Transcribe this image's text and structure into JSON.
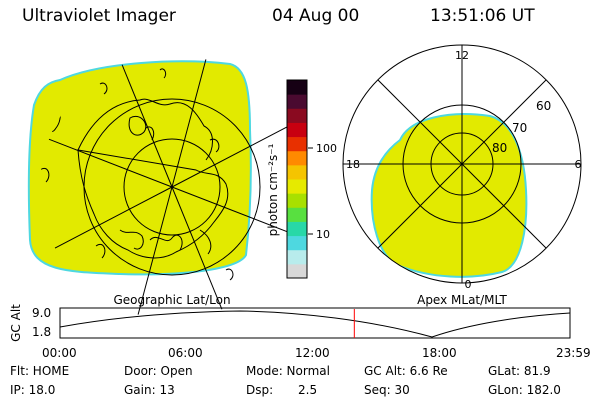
{
  "header": {
    "title": "Ultraviolet Imager",
    "date": "04 Aug 00",
    "time": "13:51:06 UT"
  },
  "geo_panel": {
    "label": "Geographic Lat/Lon"
  },
  "mag_panel": {
    "label": "Apex MLat/MLT",
    "mlt_labels": {
      "top": "12",
      "left": "18",
      "right": "6",
      "bottom": "0"
    },
    "lat_labels": [
      "60",
      "70",
      "80"
    ]
  },
  "colorbar": {
    "unit_label": "photon cm⁻²s⁻¹",
    "ticks": [
      "100",
      "10"
    ],
    "colors": {
      "scale": [
        "#d8d8d8",
        "#b8ecec",
        "#4ed8e0",
        "#28d8a8",
        "#58e040",
        "#a8e000",
        "#e6ea00",
        "#f5c400",
        "#ff8a00",
        "#e83000",
        "#c80010",
        "#8a0a20",
        "#4a0a30",
        "#160014"
      ]
    }
  },
  "altitude_plot": {
    "ylabel": "GC Alt",
    "yticks": [
      "9.0",
      "1.8"
    ],
    "xticks": [
      "00:00",
      "06:00",
      "12:00",
      "18:00",
      "23:59"
    ],
    "marker_time_hours": 13.85,
    "colors": {
      "marker": "#ff0000"
    }
  },
  "info": {
    "row1": {
      "flt": "Flt: HOME",
      "door": "Door: Open",
      "mode": "Mode: Normal",
      "gc_alt": "GC Alt: 6.6 Re",
      "glat": "GLat: 81.9"
    },
    "row2": {
      "ip": "IP: 18.0",
      "gain": "Gain: 13",
      "dsp_label": "Dsp:",
      "dsp_value": "2.5",
      "seq": "Seq: 30",
      "glon": "GLon: 182.0"
    }
  },
  "colors": {
    "emission_fill": "#e2ea00",
    "emission_edge": "#4ed8e0"
  }
}
